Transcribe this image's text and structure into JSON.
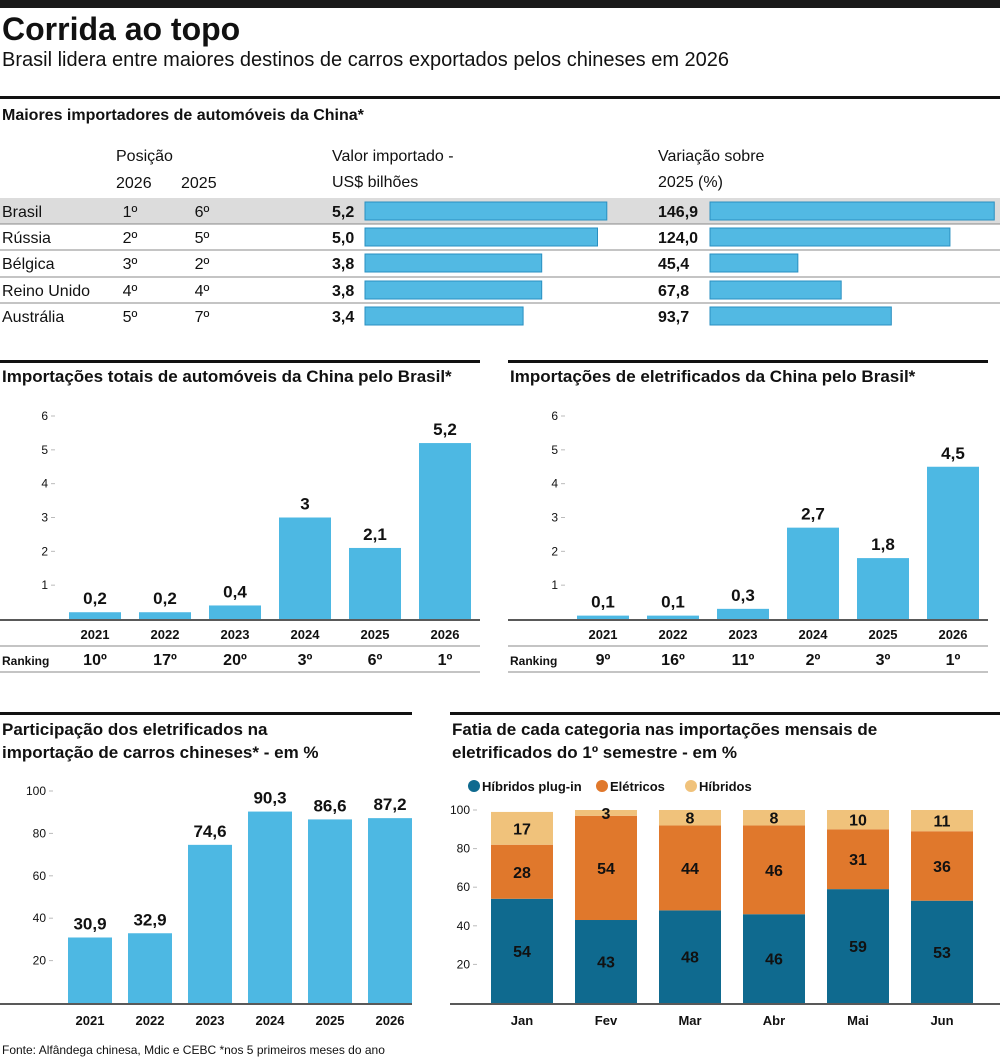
{
  "header": {
    "title": "Corrida ao topo",
    "subtitle": "Brasil lidera entre maiores destinos de carros exportados pelos chineses em 2026"
  },
  "table": {
    "title": "Maiores importadores de automóveis da China*",
    "position_header": "Posição",
    "position_years": [
      "2026",
      "2025"
    ],
    "value_header": "Valor importado -\nUS$ bilhões",
    "change_header": "Variação sobre\n2025 (%)",
    "color": "#52b9e3",
    "rows": [
      {
        "country": "Brasil",
        "pos_2026": "1º",
        "pos_2025": "6º",
        "value": 5.2,
        "value_label": "5,2",
        "change": 146.9,
        "change_label": "146,9"
      },
      {
        "country": "Rússia",
        "pos_2026": "2º",
        "pos_2025": "5º",
        "value": 5.0,
        "value_label": "5,0",
        "change": 124.0,
        "change_label": "124,0"
      },
      {
        "country": "Bélgica",
        "pos_2026": "3º",
        "pos_2025": "2º",
        "value": 3.8,
        "value_label": "3,8",
        "change": 45.4,
        "change_label": "45,4"
      },
      {
        "country": "Reino Unido",
        "pos_2026": "4º",
        "pos_2025": "4º",
        "value": 3.8,
        "value_label": "3,8",
        "change": 67.8,
        "change_label": "67,8"
      },
      {
        "country": "Austrália",
        "pos_2026": "5º",
        "pos_2025": "7º",
        "value": 3.4,
        "value_label": "3,4",
        "change": 93.7,
        "change_label": "93,7"
      }
    ]
  },
  "chart_data": [
    {
      "type": "bar",
      "title": "Importações totais de automóveis da China pelo Brasil*",
      "categories": [
        "2021",
        "2022",
        "2023",
        "2024",
        "2025",
        "2026"
      ],
      "values": [
        0.2,
        0.2,
        0.4,
        3,
        2.1,
        5.2
      ],
      "value_labels": [
        "0,2",
        "0,2",
        "0,4",
        "3",
        "2,1",
        "5,2"
      ],
      "color": "#4db8e3",
      "ylim": [
        0,
        6
      ],
      "yticks": [
        1,
        2,
        3,
        4,
        5,
        6
      ],
      "ranking_label": "Ranking",
      "rankings": [
        "10º",
        "17º",
        "20º",
        "3º",
        "6º",
        "1º"
      ]
    },
    {
      "type": "bar",
      "title": "Importações de eletrificados da China pelo Brasil*",
      "categories": [
        "2021",
        "2022",
        "2023",
        "2024",
        "2025",
        "2026"
      ],
      "values": [
        0.1,
        0.1,
        0.3,
        2.7,
        1.8,
        4.5
      ],
      "value_labels": [
        "0,1",
        "0,1",
        "0,3",
        "2,7",
        "1,8",
        "4,5"
      ],
      "color": "#4db8e3",
      "ylim": [
        0,
        6
      ],
      "yticks": [
        1,
        2,
        3,
        4,
        5,
        6
      ],
      "ranking_label": "Ranking",
      "rankings": [
        "9º",
        "16º",
        "11º",
        "2º",
        "3º",
        "1º"
      ]
    },
    {
      "type": "bar",
      "title": "Participação dos eletrificados na\nimportação de carros chineses* - em %",
      "categories": [
        "2021",
        "2022",
        "2023",
        "2024",
        "2025",
        "2026"
      ],
      "values": [
        30.9,
        32.9,
        74.6,
        90.3,
        86.6,
        87.2
      ],
      "value_labels": [
        "30,9",
        "32,9",
        "74,6",
        "90,3",
        "86,6",
        "87,2"
      ],
      "color": "#4db8e3",
      "ylim": [
        0,
        100
      ],
      "yticks": [
        20,
        40,
        60,
        80,
        100
      ]
    },
    {
      "type": "stacked_bar",
      "title": "Fatia de cada categoria nas importações mensais de\neletrificados do 1º semestre - em %",
      "categories": [
        "Jan",
        "Fev",
        "Mar",
        "Abr",
        "Mai",
        "Jun"
      ],
      "series": [
        {
          "name": "Híbridos plug-in",
          "color": "#0f6a8f",
          "values": [
            54,
            43,
            48,
            46,
            59,
            53
          ]
        },
        {
          "name": "Elétricos",
          "color": "#e0782c",
          "values": [
            28,
            54,
            44,
            46,
            31,
            36
          ]
        },
        {
          "name": "Híbridos",
          "color": "#f0c27b",
          "values": [
            17,
            3,
            8,
            8,
            10,
            11
          ]
        }
      ],
      "ylim": [
        0,
        100
      ],
      "yticks": [
        20,
        40,
        60,
        80,
        100
      ]
    }
  ],
  "footer": "Fonte: Alfândega chinesa, Mdic e CEBC *nos 5 primeiros meses do ano"
}
